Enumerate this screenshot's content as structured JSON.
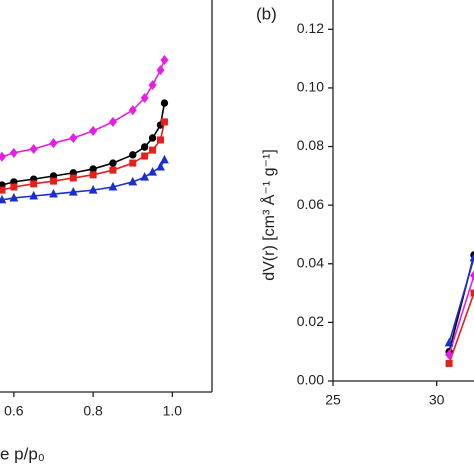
{
  "chart_data": [
    {
      "type": "line",
      "x_label": "e p/p₀",
      "xlim": [
        0.565,
        1.1
      ],
      "ylim": [
        0,
        1
      ],
      "xticks": [
        {
          "value": 0.6,
          "label": "0.6"
        },
        0.8,
        {
          "value": 1,
          "label": "1.0"
        }
      ],
      "x": [
        0.57,
        0.6,
        0.65,
        0.7,
        0.75,
        0.8,
        0.85,
        0.9,
        0.93,
        0.95,
        0.97,
        0.98
      ],
      "series": [
        {
          "color": "#e61ee6",
          "marker": "diamond",
          "values": [
            0.6,
            0.61,
            0.62,
            0.635,
            0.648,
            0.666,
            0.689,
            0.719,
            0.75,
            0.783,
            0.821,
            0.847
          ]
        },
        {
          "color": "#000000",
          "marker": "circle",
          "values": [
            0.528,
            0.536,
            0.543,
            0.551,
            0.559,
            0.569,
            0.584,
            0.605,
            0.625,
            0.648,
            0.681,
            0.737
          ]
        },
        {
          "color": "#e3201b",
          "marker": "square",
          "values": [
            0.515,
            0.523,
            0.531,
            0.538,
            0.546,
            0.554,
            0.566,
            0.584,
            0.602,
            0.617,
            0.643,
            0.689
          ]
        },
        {
          "color": "#1a2fd0",
          "marker": "triangle",
          "values": [
            0.49,
            0.495,
            0.5,
            0.505,
            0.51,
            0.515,
            0.523,
            0.536,
            0.548,
            0.561,
            0.574,
            0.592
          ]
        }
      ]
    },
    {
      "type": "line",
      "panel_label": "(b)",
      "y_label": "dV(r) [cm³ Å⁻¹ g⁻¹]",
      "xlim": [
        25,
        31.8
      ],
      "ylim": [
        0,
        0.13
      ],
      "xticks": [
        25,
        30
      ],
      "yticks": [
        {
          "value": 0,
          "label": "0.00"
        },
        {
          "value": 0.02,
          "label": "0.02"
        },
        {
          "value": 0.04,
          "label": "0.04"
        },
        {
          "value": 0.06,
          "label": "0.06"
        },
        {
          "value": 0.08,
          "label": "0.08"
        },
        {
          "value": 0.1,
          "label": "0.10"
        },
        {
          "value": 0.12,
          "label": "0.12"
        }
      ],
      "x": [
        30.6,
        31.8
      ],
      "series": [
        {
          "color": "#000000",
          "marker": "circle",
          "values": [
            0.01,
            0.043
          ]
        },
        {
          "color": "#e3201b",
          "marker": "square",
          "values": [
            0.006,
            0.03
          ]
        },
        {
          "color": "#e61ee6",
          "marker": "diamond",
          "values": [
            0.009,
            0.036
          ]
        },
        {
          "color": "#1a2fd0",
          "marker": "triangle",
          "values": [
            0.013,
            0.042
          ]
        }
      ]
    }
  ]
}
